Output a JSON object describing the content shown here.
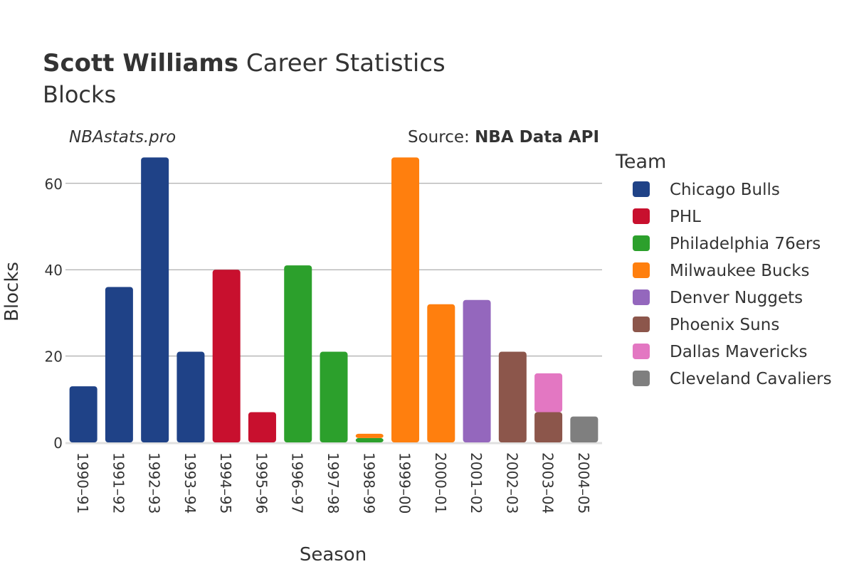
{
  "header": {
    "player": "Scott Williams",
    "title_rest": " Career Statistics",
    "subtitle": "Blocks",
    "site": "NBAstats.pro",
    "source_prefix": "Source: ",
    "source_name": "NBA Data API"
  },
  "chart_data": {
    "type": "bar",
    "stacked": true,
    "xlabel": "Season",
    "ylabel": "Blocks",
    "ylim": [
      0,
      70
    ],
    "yticks": [
      0,
      20,
      40,
      60
    ],
    "grid": true,
    "legend_title": "Team",
    "legend_position": "right",
    "categories": [
      "1990–91",
      "1991–92",
      "1992–93",
      "1993–94",
      "1994–95",
      "1995–96",
      "1996–97",
      "1997–98",
      "1998–99",
      "1999–00",
      "2000–01",
      "2001–02",
      "2002–03",
      "2003–04",
      "2004–05"
    ],
    "series": [
      {
        "name": "Chicago Bulls",
        "color": "#1f4287",
        "values": [
          13,
          36,
          66,
          21,
          0,
          0,
          0,
          0,
          0,
          0,
          0,
          0,
          0,
          0,
          0
        ]
      },
      {
        "name": "PHL",
        "color": "#c8102e",
        "values": [
          0,
          0,
          0,
          0,
          40,
          7,
          0,
          0,
          0,
          0,
          0,
          0,
          0,
          0,
          0
        ]
      },
      {
        "name": "Philadelphia 76ers",
        "color": "#2ca02c",
        "values": [
          0,
          0,
          0,
          0,
          0,
          0,
          41,
          21,
          1,
          0,
          0,
          0,
          0,
          0,
          0
        ]
      },
      {
        "name": "Milwaukee Bucks",
        "color": "#ff7f0e",
        "values": [
          0,
          0,
          0,
          0,
          0,
          0,
          0,
          0,
          1,
          66,
          32,
          0,
          0,
          0,
          0
        ]
      },
      {
        "name": "Denver Nuggets",
        "color": "#9467bd",
        "values": [
          0,
          0,
          0,
          0,
          0,
          0,
          0,
          0,
          0,
          0,
          0,
          33,
          0,
          0,
          0
        ]
      },
      {
        "name": "Phoenix Suns",
        "color": "#8c564b",
        "values": [
          0,
          0,
          0,
          0,
          0,
          0,
          0,
          0,
          0,
          0,
          0,
          0,
          21,
          7,
          0
        ]
      },
      {
        "name": "Dallas Mavericks",
        "color": "#e377c2",
        "values": [
          0,
          0,
          0,
          0,
          0,
          0,
          0,
          0,
          0,
          0,
          0,
          0,
          0,
          9,
          0
        ]
      },
      {
        "name": "Cleveland Cavaliers",
        "color": "#7f7f7f",
        "values": [
          0,
          0,
          0,
          0,
          0,
          0,
          0,
          0,
          0,
          0,
          0,
          0,
          0,
          0,
          6
        ]
      }
    ]
  }
}
